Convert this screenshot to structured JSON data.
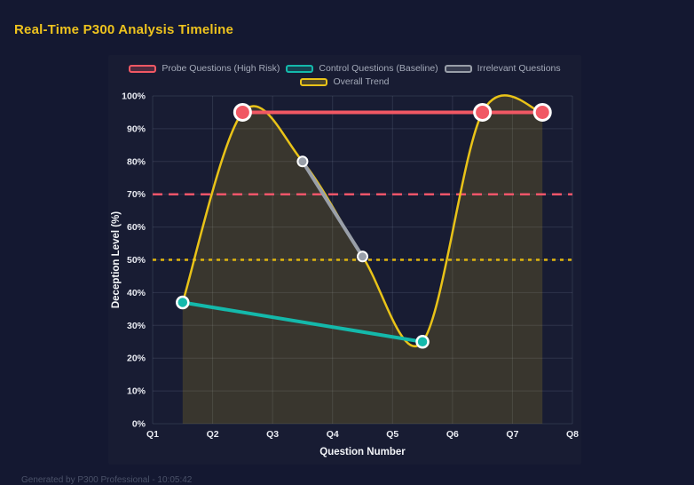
{
  "title": "Real-Time P300 Analysis Timeline",
  "footer": "Generated by P300 Professional - 10:05:42",
  "colors": {
    "page_bg": "#141831",
    "panel_bg": "#181c33",
    "title": "#eec31e",
    "grid": "rgba(155,165,190,0.17)",
    "tick_text": "#e8eaf1",
    "legend_text": "#a4aab9",
    "marker_stroke": "#ffffff",
    "area_fill": "rgba(232,194,23,0.16)",
    "footer_text": "#4a5168"
  },
  "chart_data": {
    "type": "line",
    "title": "Real-Time P300 Analysis Timeline",
    "xlabel": "Question Number",
    "ylabel": "Deception Level (%)",
    "x_ticks": [
      "Q1",
      "Q2",
      "Q3",
      "Q4",
      "Q5",
      "Q6",
      "Q7",
      "Q8"
    ],
    "x_range": [
      1,
      8
    ],
    "y_ticks": [
      "0%",
      "10%",
      "20%",
      "30%",
      "40%",
      "50%",
      "60%",
      "70%",
      "80%",
      "90%",
      "100%"
    ],
    "ylim": [
      0,
      100
    ],
    "grid": true,
    "legend_position": "top-center",
    "legend_rows": [
      [
        0,
        1,
        2
      ],
      [
        3
      ]
    ],
    "series": [
      {
        "name": "Probe Questions (High Risk)",
        "color": "#f15864",
        "style": "line",
        "width": 4,
        "marker_radius": 9,
        "marker_stroke_width": 3,
        "points": [
          [
            2.5,
            95
          ],
          [
            6.5,
            95
          ],
          [
            7.5,
            95
          ]
        ]
      },
      {
        "name": "Control Questions (Baseline)",
        "color": "#14b9ab",
        "style": "line",
        "width": 4,
        "marker_radius": 6.5,
        "marker_stroke_width": 2.5,
        "points": [
          [
            1.5,
            37
          ],
          [
            5.5,
            25
          ]
        ]
      },
      {
        "name": "Irrelevant Questions",
        "color": "#999fa9",
        "style": "line",
        "width": 4,
        "marker_radius": 5.5,
        "marker_stroke_width": 2,
        "points": [
          [
            3.5,
            80
          ],
          [
            4.5,
            51
          ]
        ]
      },
      {
        "name": "Overall Trend",
        "color": "#e9c318",
        "style": "spline",
        "area": true,
        "width": 2.5,
        "marker_radius": 0,
        "marker_stroke_width": 0,
        "points": [
          [
            1.5,
            37
          ],
          [
            2.5,
            95
          ],
          [
            3.5,
            80
          ],
          [
            4.5,
            51
          ],
          [
            5.5,
            25
          ],
          [
            6.5,
            95
          ],
          [
            7.5,
            95
          ]
        ]
      }
    ],
    "thresholds": [
      {
        "value": 70,
        "color": "#f1556a",
        "dash": "11 7",
        "width": 2.5
      },
      {
        "value": 50,
        "color": "#e0b50f",
        "dash": "4 5",
        "width": 2.5
      }
    ]
  }
}
